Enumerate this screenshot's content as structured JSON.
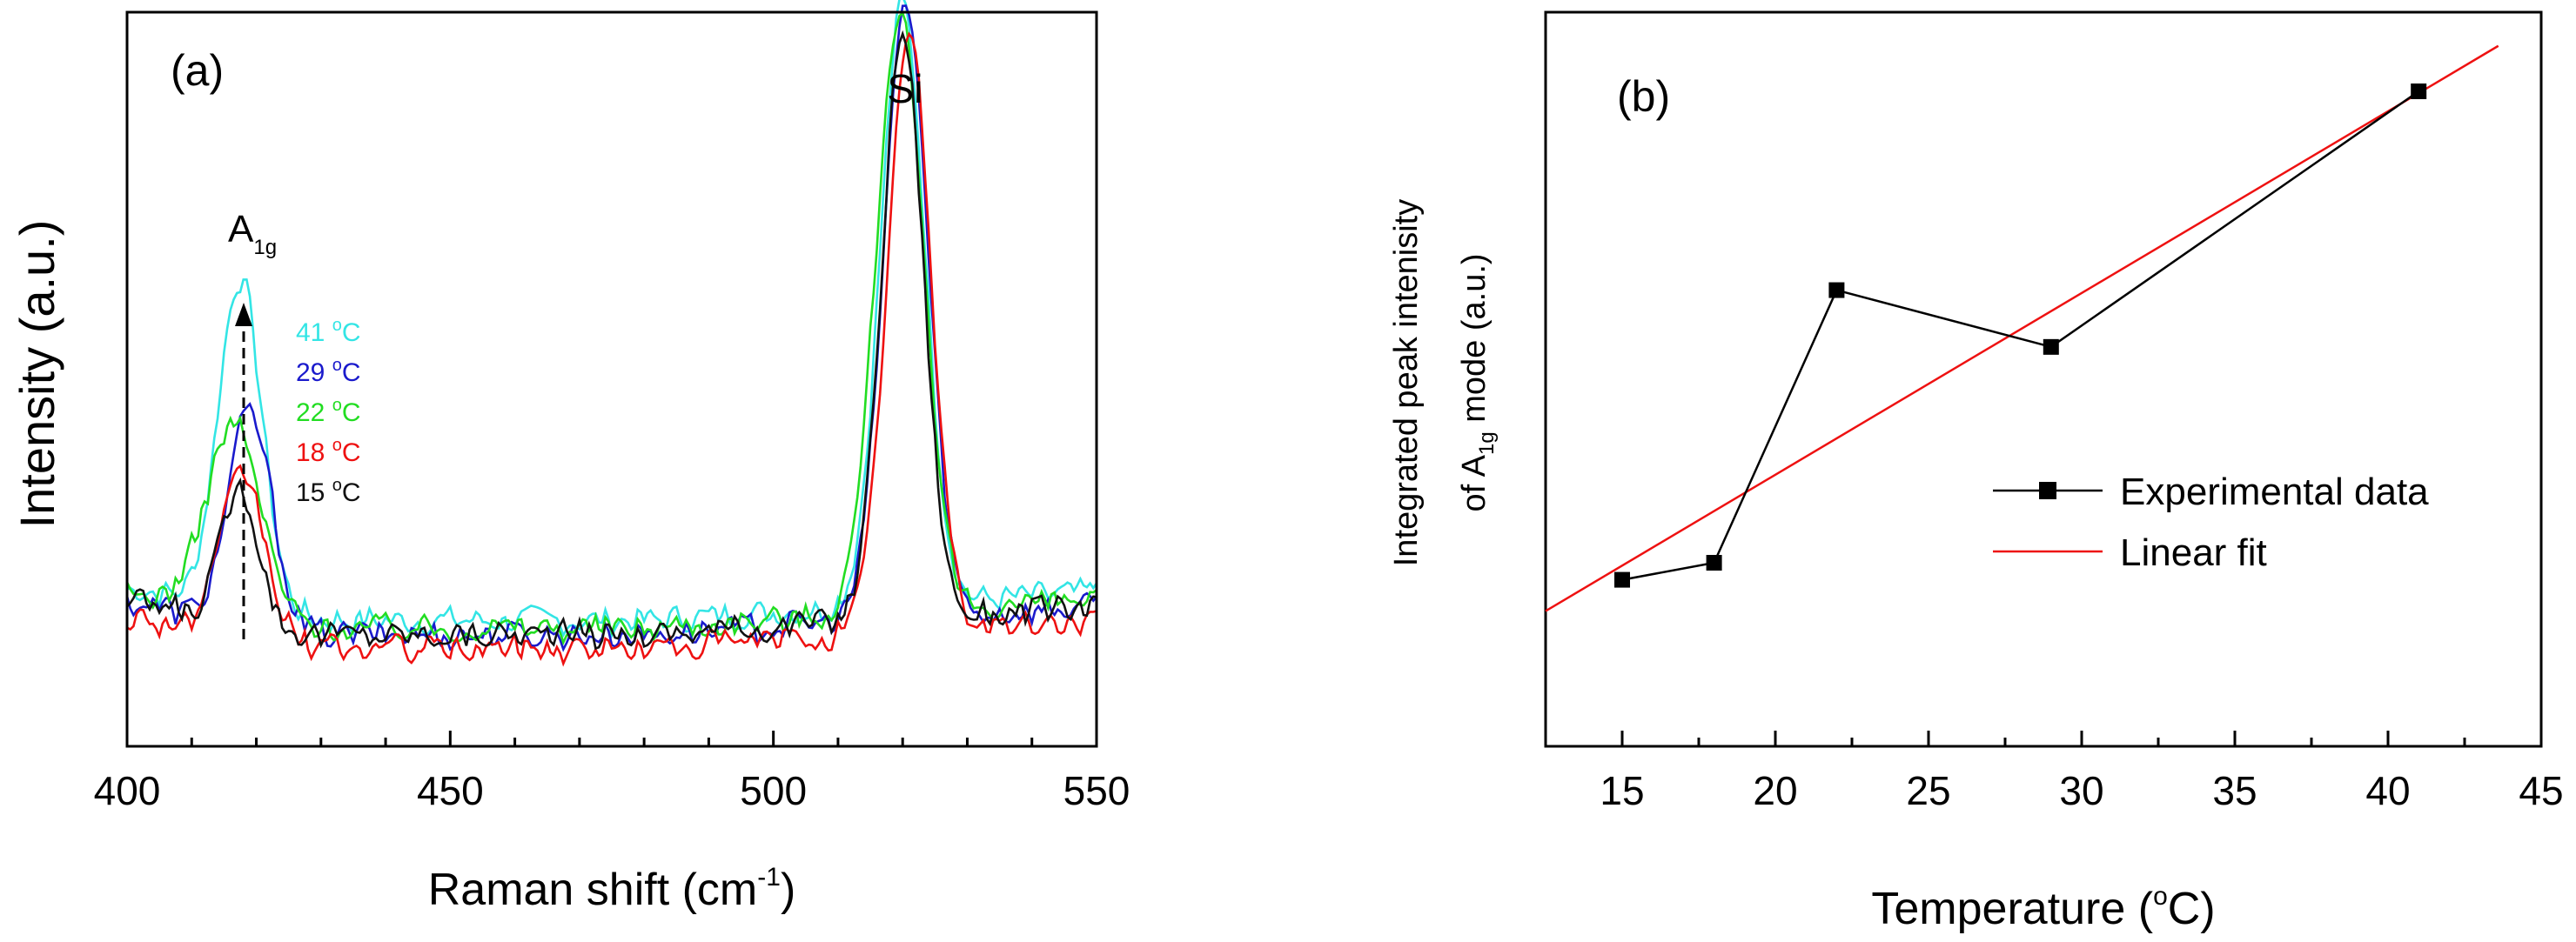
{
  "chart_data": [
    {
      "type": "line",
      "panel_label": "(a)",
      "xlabel_main": "Raman shift (cm",
      "xlabel_sup": "-1",
      "xlabel_end": ")",
      "ylabel": "Intensity (a.u.)",
      "xlim": [
        400,
        550
      ],
      "ylim": [
        0,
        1.05
      ],
      "x_ticks": [
        "400",
        "450",
        "500",
        "550"
      ],
      "annotations": {
        "peak_main": "A",
        "peak_sub": "1g",
        "si": "Si"
      },
      "series": [
        {
          "name": "41 °C",
          "temp": "41",
          "unit": "°C",
          "color": "#33e5e5",
          "peaks": [
            {
              "center": 417.5,
              "amp": 0.48,
              "width": 3.4
            },
            {
              "center": 520,
              "amp": 0.86,
              "width": 3.4
            }
          ],
          "base": 0.18
        },
        {
          "name": "29 °C",
          "temp": "29",
          "unit": "°C",
          "color": "#1a1acc",
          "peaks": [
            {
              "center": 419,
              "amp": 0.31,
              "width": 3.4
            },
            {
              "center": 520.5,
              "amp": 0.88,
              "width": 3.4
            }
          ],
          "base": 0.16
        },
        {
          "name": "22 °C",
          "temp": "22",
          "unit": "°C",
          "color": "#22dd22",
          "peaks": [
            {
              "center": 416.5,
              "amp": 0.28,
              "width": 4.2
            },
            {
              "center": 519.5,
              "amp": 0.86,
              "width": 3.6
            }
          ],
          "base": 0.17
        },
        {
          "name": "18 °C",
          "temp": "18",
          "unit": "°C",
          "color": "#ee1111",
          "peaks": [
            {
              "center": 418,
              "amp": 0.24,
              "width": 3.4
            },
            {
              "center": 521,
              "amp": 0.85,
              "width": 3.4
            }
          ],
          "base": 0.14
        },
        {
          "name": "15 °C",
          "temp": "15",
          "unit": "°C",
          "color": "#111111",
          "peaks": [
            {
              "center": 417.5,
              "amp": 0.2,
              "width": 3.0
            },
            {
              "center": 520,
              "amp": 0.84,
              "width": 3.2
            }
          ],
          "base": 0.16
        }
      ]
    },
    {
      "type": "line",
      "panel_label": "(b)",
      "xlabel_main": "Temperature (",
      "xlabel_sup": "o",
      "xlabel_end": "C)",
      "ylabel_line1": "Integrated peak intenisity",
      "ylabel_line2_pre": "of A",
      "ylabel_line2_sub": "1g",
      "ylabel_line2_post": " mode  (a.u.)",
      "xlim": [
        12.5,
        45
      ],
      "ylim": [
        0,
        1
      ],
      "x_ticks": [
        "15",
        "20",
        "25",
        "30",
        "35",
        "40",
        "45"
      ],
      "series": [
        {
          "name": "Experimental data",
          "color": "#000000",
          "x": [
            15,
            18,
            22,
            29,
            41
          ],
          "y": [
            0.14,
            0.17,
            0.65,
            0.55,
            1.0
          ]
        },
        {
          "name": "Linear fit",
          "color": "#ee1111",
          "x": [
            12.5,
            43.6
          ],
          "y": [
            0.085,
            1.08
          ]
        }
      ]
    }
  ]
}
